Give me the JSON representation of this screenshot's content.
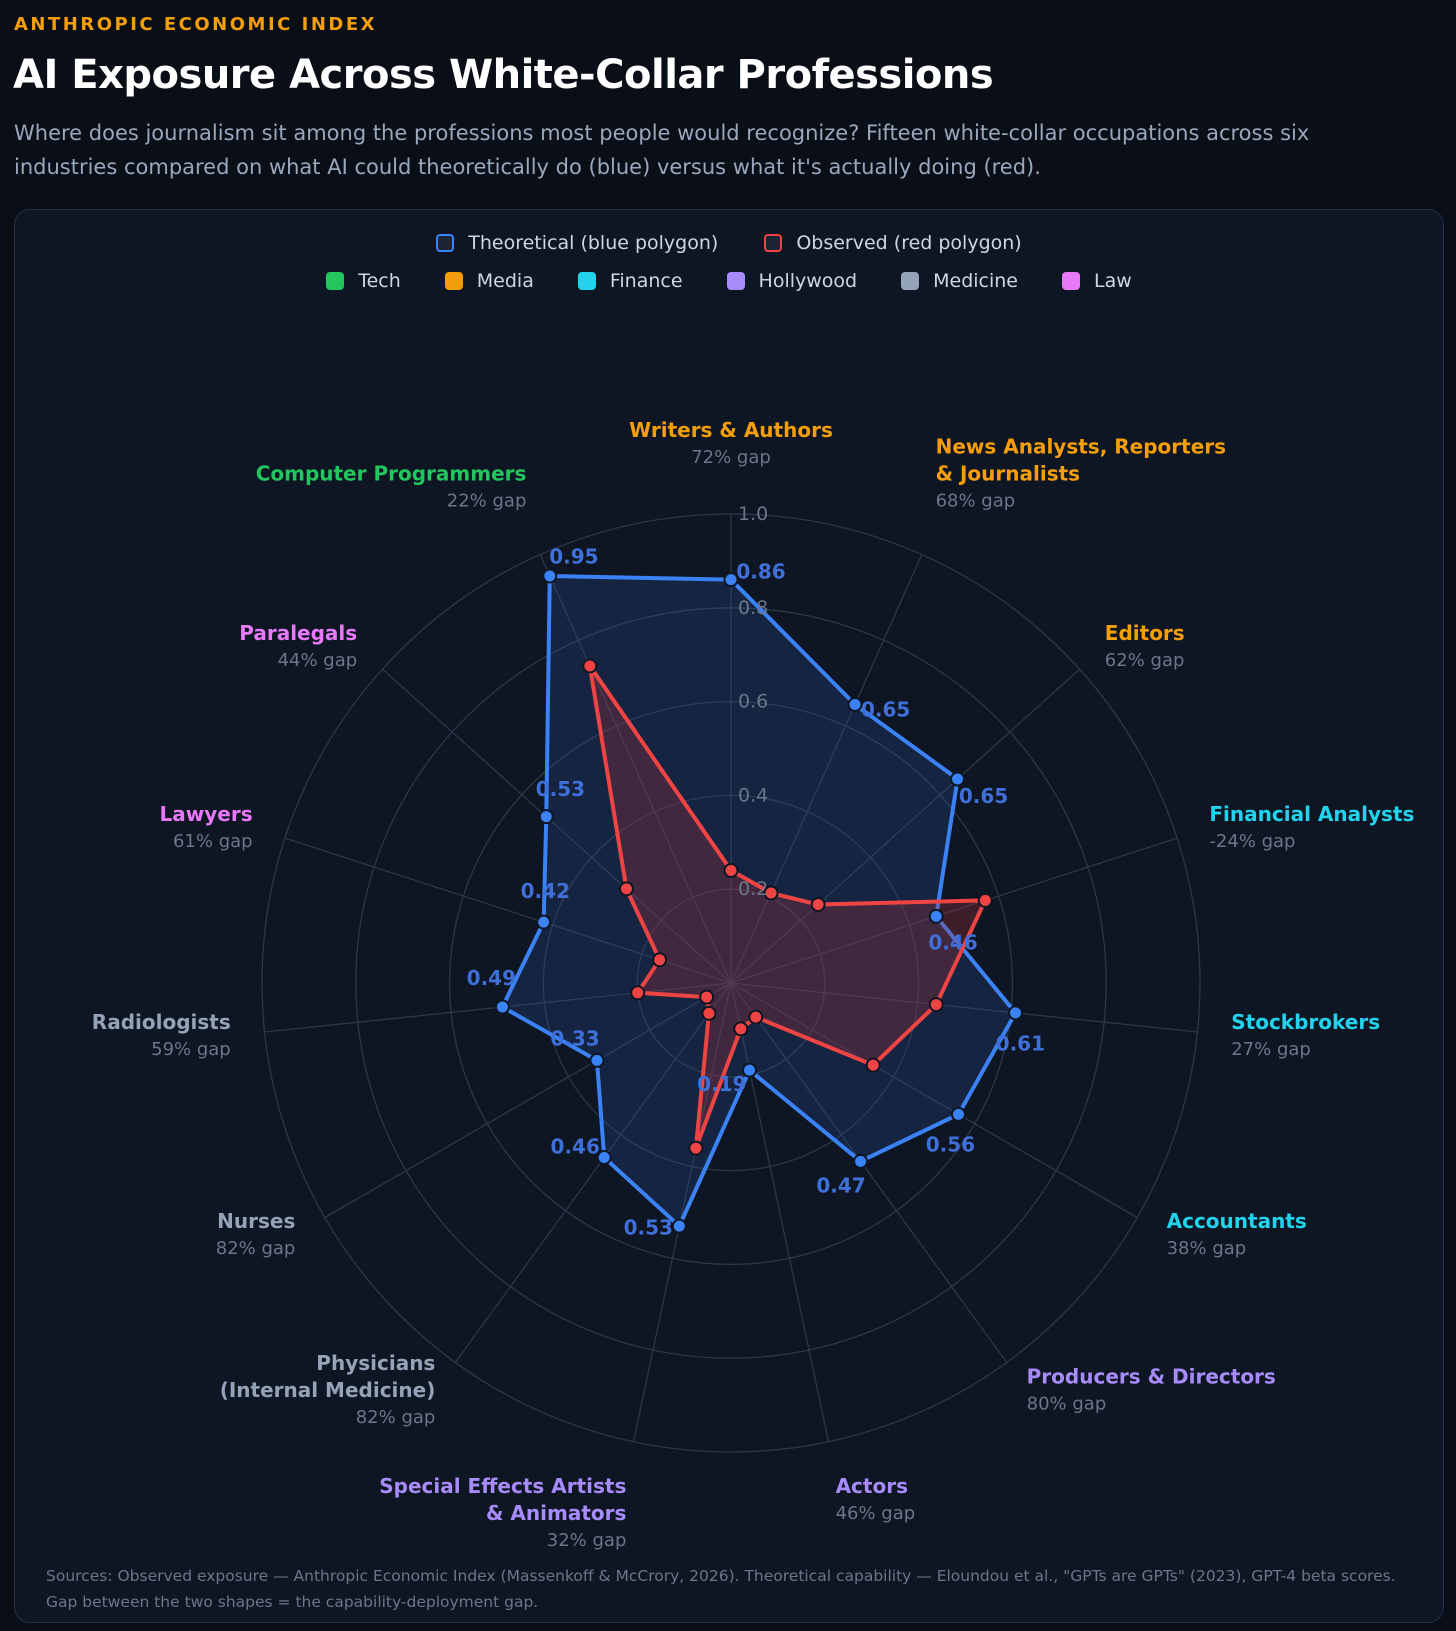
{
  "header": {
    "eyebrow": "ANTHROPIC ECONOMIC INDEX",
    "title": "AI Exposure Across White-Collar Professions",
    "subtitle": "Where does journalism sit among the professions most people would recognize? Fifteen white-collar occupations across six industries compared on what AI could theoretically do (blue) versus what it's actually doing (red)."
  },
  "legend": {
    "series": [
      {
        "label": "Theoretical (blue polygon)",
        "color": "#3b82f6"
      },
      {
        "label": "Observed (red polygon)",
        "color": "#ef4444"
      }
    ],
    "industries": [
      {
        "label": "Tech",
        "color": "#22c55e"
      },
      {
        "label": "Media",
        "color": "#f59e0b"
      },
      {
        "label": "Finance",
        "color": "#22d3ee"
      },
      {
        "label": "Hollywood",
        "color": "#a78bfa"
      },
      {
        "label": "Medicine",
        "color": "#94a3b8"
      },
      {
        "label": "Law",
        "color": "#e879f9"
      }
    ]
  },
  "chart_data": {
    "type": "radar",
    "rlim": [
      0,
      1
    ],
    "ticks": [
      0.2,
      0.4,
      0.6,
      0.8,
      1.0
    ],
    "tick_labels": [
      "0.2",
      "0.4",
      "0.6",
      "0.8",
      "1.0"
    ],
    "axes": [
      {
        "name": "Writers & Authors",
        "gap": "72% gap",
        "industry": "Media",
        "theoretical": 0.86,
        "theoretical_label": "0.86",
        "observed": 0.24
      },
      {
        "name": "News Analysts, Reporters & Journalists",
        "gap": "68% gap",
        "industry": "Media",
        "theoretical": 0.65,
        "theoretical_label": "0.65",
        "observed": 0.21
      },
      {
        "name": "Editors",
        "gap": "62% gap",
        "industry": "Media",
        "theoretical": 0.65,
        "theoretical_label": "0.65",
        "observed": 0.25
      },
      {
        "name": "Financial Analysts",
        "gap": "-24% gap",
        "industry": "Finance",
        "theoretical": 0.46,
        "theoretical_label": "0.46",
        "observed": 0.57
      },
      {
        "name": "Stockbrokers",
        "gap": "27% gap",
        "industry": "Finance",
        "theoretical": 0.61,
        "theoretical_label": "0.61",
        "observed": 0.44
      },
      {
        "name": "Accountants",
        "gap": "38% gap",
        "industry": "Finance",
        "theoretical": 0.56,
        "theoretical_label": "0.56",
        "observed": 0.35
      },
      {
        "name": "Producers & Directors",
        "gap": "80% gap",
        "industry": "Hollywood",
        "theoretical": 0.47,
        "theoretical_label": "0.47",
        "observed": 0.09
      },
      {
        "name": "Actors",
        "gap": "46% gap",
        "industry": "Hollywood",
        "theoretical": 0.19,
        "theoretical_label": "0.19",
        "observed": 0.1
      },
      {
        "name": "Special Effects Artists & Animators",
        "gap": "32% gap",
        "industry": "Hollywood",
        "theoretical": 0.53,
        "theoretical_label": "0.53",
        "observed": 0.36
      },
      {
        "name": "Physicians (Internal Medicine)",
        "gap": "82% gap",
        "industry": "Medicine",
        "theoretical": 0.46,
        "theoretical_label": "0.46",
        "observed": 0.08
      },
      {
        "name": "Nurses",
        "gap": "82% gap",
        "industry": "Medicine",
        "theoretical": 0.33,
        "theoretical_label": "0.33",
        "observed": 0.06
      },
      {
        "name": "Radiologists",
        "gap": "59% gap",
        "industry": "Medicine",
        "theoretical": 0.49,
        "theoretical_label": "0.49",
        "observed": 0.2
      },
      {
        "name": "Lawyers",
        "gap": "61% gap",
        "industry": "Law",
        "theoretical": 0.42,
        "theoretical_label": "0.42",
        "observed": 0.16
      },
      {
        "name": "Paralegals",
        "gap": "44% gap",
        "industry": "Law",
        "theoretical": 0.53,
        "theoretical_label": "0.53",
        "observed": 0.3
      },
      {
        "name": "Computer Programmers",
        "gap": "22% gap",
        "industry": "Tech",
        "theoretical": 0.95,
        "theoretical_label": "0.95",
        "observed": 0.74
      }
    ]
  },
  "footer": {
    "sources": "Sources: Observed exposure — Anthropic Economic Index (Massenkoff & McCrory, 2026). Theoretical capability — Eloundou et al., \"GPTs are GPTs\" (2023), GPT-4 beta scores. Gap between the two shapes = the capability-deployment gap."
  }
}
